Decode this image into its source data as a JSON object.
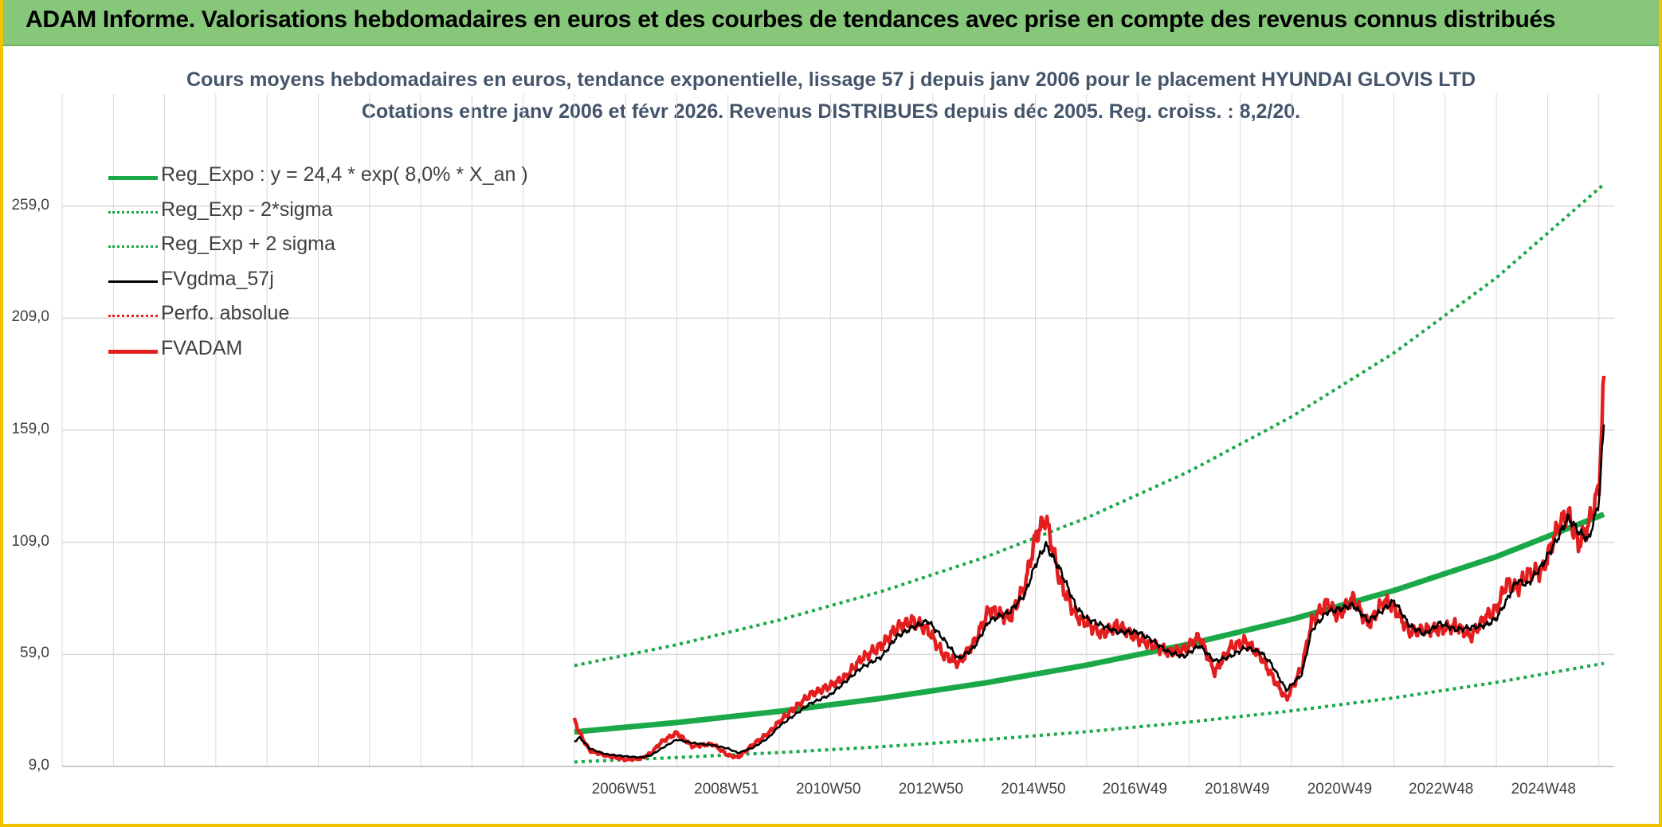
{
  "header": {
    "title": "ADAM Informe. Valorisations hebdomadaires en euros et des courbes de tendances avec prise en compte des revenus connus distribués"
  },
  "chart_data": {
    "type": "line",
    "title": "Cours moyens hebdomadaires en euros, tendance exponentielle, lissage 57 j depuis janv 2006 pour le placement HYUNDAI GLOVIS LTD",
    "subtitle": "Cotations entre janv 2006 et févr 2026. Revenus DISTRIBUES depuis déc 2005. Reg. croiss. : 8,2/20.",
    "xlabel": "",
    "ylabel": "",
    "x_range": [
      1996.0,
      2026.3
    ],
    "ylim": [
      9,
      309
    ],
    "y_ticks": [
      "9,0",
      "59,0",
      "109,0",
      "159,0",
      "209,0",
      "259,0"
    ],
    "x_ticks": [
      {
        "label": "2006W51",
        "x": 2006.97
      },
      {
        "label": "2008W51",
        "x": 2008.97
      },
      {
        "label": "2010W50",
        "x": 2010.96
      },
      {
        "label": "2012W50",
        "x": 2012.96
      },
      {
        "label": "2014W50",
        "x": 2014.96
      },
      {
        "label": "2016W49",
        "x": 2016.94
      },
      {
        "label": "2018W49",
        "x": 2018.94
      },
      {
        "label": "2020W49",
        "x": 2020.94
      },
      {
        "label": "2022W48",
        "x": 2022.92
      },
      {
        "label": "2024W48",
        "x": 2024.92
      }
    ],
    "grid": true,
    "legend_position": "top-left",
    "series": [
      {
        "name": "Reg_Expo : y = 24,4 * exp( 8,0% *  X_an )",
        "color": "#1aa848",
        "style": "solid-thick",
        "x": [
          2006.0,
          2008.0,
          2010.0,
          2012.0,
          2014.0,
          2016.0,
          2018.0,
          2020.0,
          2022.0,
          2024.0,
          2026.1
        ],
        "y": [
          24.4,
          28.6,
          33.6,
          39.4,
          46.2,
          54.2,
          63.6,
          74.6,
          87.5,
          102.6,
          121.5
        ]
      },
      {
        "name": "Reg_Exp - 2*sigma",
        "color": "#1aa848",
        "style": "dotted",
        "x": [
          2006.0,
          2008.0,
          2010.0,
          2012.0,
          2014.0,
          2016.0,
          2018.0,
          2020.0,
          2022.0,
          2024.0,
          2026.1
        ],
        "y": [
          11.0,
          13.0,
          15.2,
          17.8,
          20.9,
          24.5,
          28.8,
          33.8,
          39.6,
          46.5,
          55.0
        ]
      },
      {
        "name": "Reg_Exp + 2 sigma",
        "color": "#1aa848",
        "style": "dotted",
        "x": [
          2006.0,
          2008.0,
          2010.0,
          2012.0,
          2014.0,
          2016.0,
          2018.0,
          2020.0,
          2022.0,
          2024.0,
          2026.1
        ],
        "y": [
          54.0,
          63.3,
          74.3,
          87.1,
          102.2,
          119.9,
          140.6,
          165.0,
          193.5,
          227.0,
          268.8
        ]
      },
      {
        "name": "FVgdma_57j",
        "color": "#000000",
        "style": "solid",
        "x": [
          2006.0,
          2006.1,
          2006.3,
          2006.6,
          2007.0,
          2007.3,
          2007.5,
          2007.7,
          2008.0,
          2008.3,
          2008.7,
          2009.0,
          2009.2,
          2009.5,
          2009.8,
          2010.0,
          2010.3,
          2010.6,
          2011.0,
          2011.3,
          2011.6,
          2012.0,
          2012.3,
          2012.6,
          2012.9,
          2013.2,
          2013.5,
          2013.8,
          2014.1,
          2014.5,
          2014.8,
          2015.0,
          2015.2,
          2015.5,
          2015.8,
          2016.0,
          2016.3,
          2016.6,
          2017.0,
          2017.3,
          2017.6,
          2017.9,
          2018.2,
          2018.5,
          2018.8,
          2019.1,
          2019.4,
          2019.6,
          2019.9,
          2020.2,
          2020.4,
          2020.7,
          2020.9,
          2021.2,
          2021.5,
          2021.8,
          2022.0,
          2022.3,
          2022.6,
          2022.9,
          2023.2,
          2023.5,
          2023.8,
          2024.0,
          2024.2,
          2024.4,
          2024.6,
          2024.9,
          2025.2,
          2025.4,
          2025.6,
          2025.8,
          2026.0,
          2026.1
        ],
        "y": [
          20.0,
          22.0,
          17.0,
          14.5,
          13.5,
          13.0,
          14.0,
          17.0,
          21.0,
          19.5,
          18.5,
          17.0,
          15.0,
          17.5,
          22.0,
          27.0,
          32.0,
          37.0,
          41.0,
          47.0,
          53.0,
          58.0,
          67.0,
          71.0,
          74.0,
          66.0,
          57.0,
          62.0,
          74.0,
          78.0,
          86.0,
          99.0,
          108.0,
          96.0,
          80.0,
          75.0,
          72.0,
          69.0,
          69.0,
          65.0,
          60.0,
          58.0,
          63.0,
          56.0,
          58.0,
          62.0,
          60.0,
          55.0,
          43.0,
          50.0,
          70.0,
          78.0,
          79.0,
          81.0,
          74.0,
          79.0,
          83.0,
          72.0,
          68.0,
          73.0,
          70.0,
          71.0,
          72.0,
          75.0,
          83.0,
          92.0,
          90.0,
          99.0,
          111.0,
          120.0,
          114.0,
          110.0,
          127.0,
          162.0
        ]
      },
      {
        "name": "Perfo. absolue",
        "color": "#e41e1e",
        "style": "dotted",
        "x": [],
        "y": []
      },
      {
        "name": "FVADAM",
        "color": "#e41e1e",
        "style": "solid-thick",
        "x": [
          2006.0,
          2006.1,
          2006.3,
          2006.6,
          2007.0,
          2007.3,
          2007.5,
          2007.7,
          2008.0,
          2008.3,
          2008.7,
          2009.0,
          2009.2,
          2009.5,
          2009.8,
          2010.0,
          2010.3,
          2010.6,
          2011.0,
          2011.3,
          2011.6,
          2012.0,
          2012.3,
          2012.6,
          2012.9,
          2013.2,
          2013.5,
          2013.8,
          2014.1,
          2014.5,
          2014.8,
          2015.0,
          2015.2,
          2015.5,
          2015.8,
          2016.0,
          2016.3,
          2016.6,
          2017.0,
          2017.3,
          2017.6,
          2017.9,
          2018.2,
          2018.5,
          2018.8,
          2019.1,
          2019.4,
          2019.6,
          2019.9,
          2020.2,
          2020.4,
          2020.7,
          2020.9,
          2021.2,
          2021.5,
          2021.8,
          2022.0,
          2022.3,
          2022.6,
          2022.9,
          2023.2,
          2023.5,
          2023.8,
          2024.0,
          2024.2,
          2024.4,
          2024.6,
          2024.9,
          2025.2,
          2025.4,
          2025.6,
          2025.8,
          2026.0,
          2026.1
        ],
        "y": [
          30.0,
          24.0,
          16.0,
          14.0,
          12.0,
          12.5,
          15.0,
          20.0,
          24.0,
          18.0,
          19.0,
          14.0,
          13.0,
          19.0,
          24.0,
          29.0,
          35.0,
          41.0,
          45.0,
          49.0,
          57.0,
          63.0,
          71.0,
          74.0,
          70.0,
          59.0,
          55.0,
          64.0,
          79.0,
          75.0,
          90.0,
          111.0,
          120.0,
          90.0,
          76.0,
          73.0,
          68.0,
          72.0,
          66.0,
          63.0,
          60.0,
          61.0,
          67.0,
          51.0,
          62.0,
          65.0,
          58.0,
          50.0,
          39.0,
          53.0,
          74.0,
          82.0,
          76.0,
          84.0,
          72.0,
          83.0,
          80.0,
          69.0,
          70.0,
          70.0,
          72.0,
          67.0,
          76.0,
          79.0,
          91.0,
          88.0,
          95.0,
          96.0,
          116.0,
          122.0,
          108.0,
          117.0,
          133.0,
          181.0
        ]
      }
    ]
  }
}
